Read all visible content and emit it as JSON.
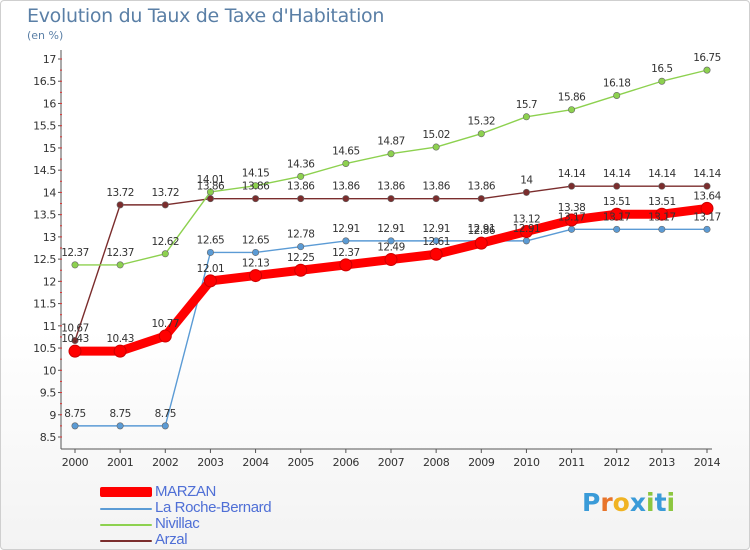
{
  "title": "Evolution du Taux de Taxe d'Habitation",
  "subtitle": "(en %)",
  "logo_text": "Proxiti",
  "logo_colors": [
    "#3a9bd8",
    "#e8742a",
    "#f0b323",
    "#3a9bd8",
    "#8cc63f",
    "#3a9bd8",
    "#8cc63f"
  ],
  "chart_data": {
    "type": "line",
    "x": [
      "2000",
      "2001",
      "2002",
      "2003",
      "2004",
      "2005",
      "2006",
      "2007",
      "2008",
      "2009",
      "2010",
      "2011",
      "2012",
      "2013",
      "2014"
    ],
    "ylim": [
      8.5,
      17
    ],
    "yticks": [
      "8.5",
      "9",
      "9.5",
      "10",
      "10.5",
      "11",
      "11.5",
      "12",
      "12.5",
      "13",
      "13.5",
      "14",
      "14.5",
      "15",
      "15.5",
      "16",
      "16.5",
      "17"
    ],
    "grid": false,
    "legend_position": "bottom-left",
    "series": [
      {
        "name": "MARZAN",
        "color": "#ff0000",
        "values": [
          10.43,
          10.43,
          10.77,
          12.01,
          12.13,
          12.25,
          12.37,
          12.49,
          12.61,
          12.86,
          13.12,
          13.38,
          13.51,
          13.51,
          13.64
        ],
        "labels": [
          "10.43",
          "10.43",
          "10.77",
          "12.01",
          "12.13",
          "12.25",
          "12.37",
          "12.49",
          "12.61",
          "12.86",
          "13.12",
          "13.38",
          "13.51",
          "13.51",
          "13.64"
        ]
      },
      {
        "name": "La Roche-Bernard",
        "color": "#5b9bd5",
        "values": [
          8.75,
          8.75,
          8.75,
          12.65,
          12.65,
          12.78,
          12.91,
          12.91,
          12.91,
          12.91,
          12.91,
          13.17,
          13.17,
          13.17,
          13.17
        ],
        "labels": [
          "8.75",
          "8.75",
          "8.75",
          "12.65",
          "12.65",
          "12.78",
          "12.91",
          "12.91",
          "12.91",
          "12.91",
          "12.91",
          "13.17",
          "13.17",
          "13.17",
          "13.17"
        ]
      },
      {
        "name": "Nivillac",
        "color": "#8dd14f",
        "values": [
          12.37,
          12.37,
          12.62,
          14.01,
          14.15,
          14.36,
          14.65,
          14.87,
          15.02,
          15.32,
          15.7,
          15.86,
          16.18,
          16.5,
          16.75
        ],
        "labels": [
          "12.37",
          "12.37",
          "12.62",
          "14.01",
          "14.15",
          "14.36",
          "14.65",
          "14.87",
          "15.02",
          "15.32",
          "15.7",
          "15.86",
          "16.18",
          "16.5",
          "16.75"
        ]
      },
      {
        "name": "Arzal",
        "color": "#7b2d2d",
        "values": [
          10.67,
          13.72,
          13.72,
          13.86,
          13.86,
          13.86,
          13.86,
          13.86,
          13.86,
          13.86,
          14,
          14.14,
          14.14,
          14.14,
          14.14
        ],
        "labels": [
          "10.67",
          "13.72",
          "13.72",
          "13.86",
          "13.86",
          "13.86",
          "13.86",
          "13.86",
          "13.86",
          "13.86",
          "14",
          "14.14",
          "14.14",
          "14.14",
          "14.14"
        ]
      }
    ]
  }
}
